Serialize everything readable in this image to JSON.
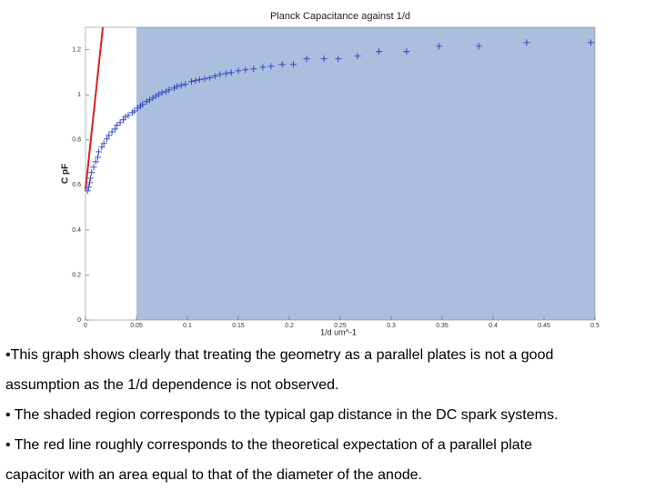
{
  "chart_data": {
    "type": "scatter",
    "title": "Planck Capacitance against 1/d",
    "xlabel": "1/d um^-1",
    "ylabel": "C pF",
    "xlim": [
      0,
      0.5
    ],
    "ylim": [
      0,
      1.3
    ],
    "xticks": [
      0,
      0.05,
      0.1,
      0.15,
      0.2,
      0.25,
      0.3,
      0.35,
      0.4,
      0.45,
      0.5
    ],
    "yticks": [
      0,
      0.2,
      0.4,
      0.6,
      0.8,
      1,
      1.2
    ],
    "shaded_region": {
      "color": "#a9bfdd",
      "x": [
        0.05,
        0.5
      ]
    },
    "series": [
      {
        "color": "#2a3fc0",
        "marker": "+",
        "x": [
          0.496,
          0.433,
          0.386,
          0.347,
          0.315,
          0.288,
          0.267,
          0.248,
          0.234,
          0.217,
          0.204,
          0.193,
          0.182,
          0.174,
          0.165,
          0.157,
          0.15,
          0.143,
          0.138,
          0.132,
          0.127,
          0.122,
          0.117,
          0.112,
          0.108,
          0.104,
          0.098,
          0.094,
          0.09,
          0.087,
          0.082,
          0.079,
          0.075,
          0.072,
          0.069,
          0.066,
          0.063,
          0.06,
          0.056,
          0.054,
          0.051,
          0.048,
          0.046,
          0.042,
          0.039,
          0.037,
          0.034,
          0.031,
          0.029,
          0.026,
          0.023,
          0.021,
          0.018,
          0.016,
          0.013,
          0.012,
          0.01,
          0.008,
          0.006,
          0.005,
          0.004,
          0.003,
          0.002
        ],
        "values": [
          1.232,
          1.232,
          1.216,
          1.216,
          1.192,
          1.192,
          1.172,
          1.16,
          1.16,
          1.16,
          1.135,
          1.135,
          1.127,
          1.123,
          1.115,
          1.111,
          1.107,
          1.099,
          1.095,
          1.091,
          1.083,
          1.075,
          1.071,
          1.067,
          1.063,
          1.059,
          1.047,
          1.042,
          1.038,
          1.03,
          1.022,
          1.014,
          1.01,
          1.002,
          0.994,
          0.986,
          0.978,
          0.97,
          0.958,
          0.95,
          0.941,
          0.929,
          0.921,
          0.909,
          0.901,
          0.889,
          0.877,
          0.865,
          0.848,
          0.836,
          0.82,
          0.804,
          0.784,
          0.768,
          0.747,
          0.723,
          0.703,
          0.679,
          0.655,
          0.63,
          0.61,
          0.59,
          0.574
        ]
      }
    ],
    "reference_line": {
      "color": "#dd1f1f",
      "x": [
        0,
        0.017
      ],
      "values": [
        0.58,
        1.3
      ]
    }
  },
  "bullets": [
    "•This graph shows clearly that treating the geometry as a parallel plates is not a good assumption as the 1/d dependence is not observed.",
    "• The shaded region corresponds to the typical gap distance in the DC spark systems.",
    "• The red line roughly corresponds to the theoretical expectation of a parallel plate capacitor with an area equal to that of the diameter of the anode."
  ]
}
